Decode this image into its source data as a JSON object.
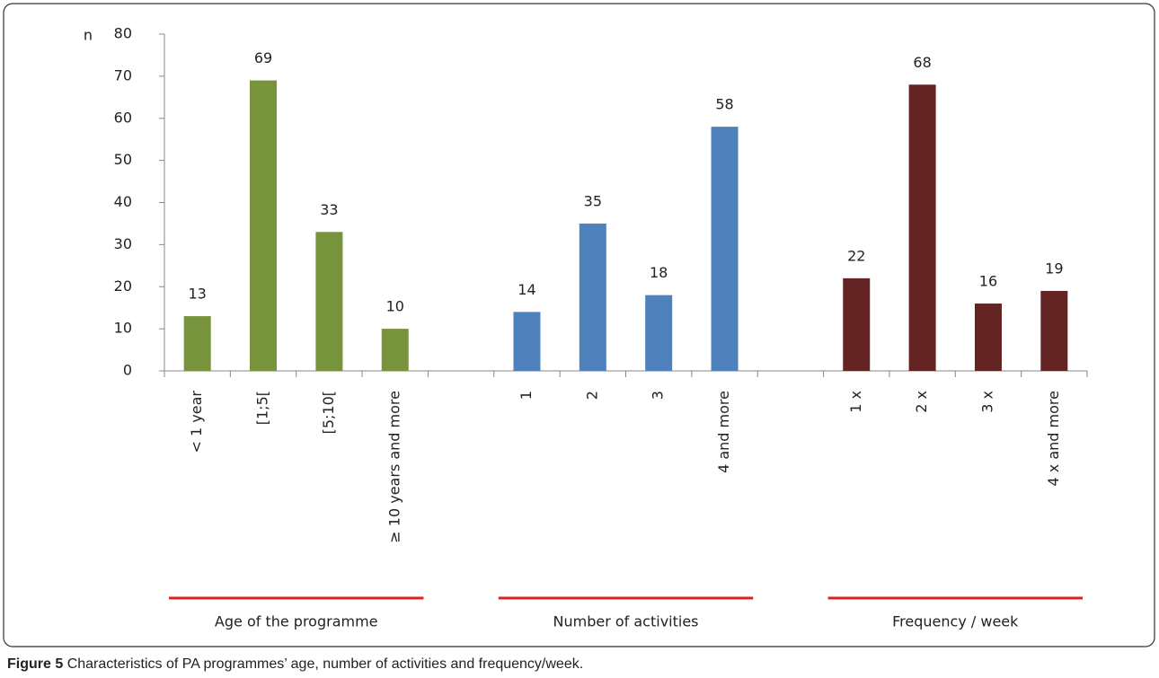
{
  "chart_data": {
    "type": "bar",
    "y_label": "n",
    "categories": [
      "< 1 year",
      "[1;5[",
      "[5;10[",
      "≥ 10 years and more",
      null,
      "1",
      "2",
      "3",
      "4 and more",
      null,
      "1 x",
      "2 x",
      "3 x",
      "4 x and more"
    ],
    "series": [
      {
        "name": "Age of the programme",
        "color": "#77933c",
        "values": [
          13,
          69,
          33,
          10,
          null,
          null,
          null,
          null,
          null,
          null,
          null,
          null,
          null,
          null
        ]
      },
      {
        "name": "Number of activities",
        "color": "#4f81bd",
        "values": [
          null,
          null,
          null,
          null,
          null,
          14,
          35,
          18,
          58,
          null,
          null,
          null,
          null,
          null
        ]
      },
      {
        "name": "Frequency / week",
        "color": "#632423",
        "values": [
          null,
          null,
          null,
          null,
          null,
          null,
          null,
          null,
          null,
          null,
          22,
          68,
          16,
          19
        ]
      }
    ],
    "group_line_color": "#e02020",
    "ylim": [
      0,
      80
    ],
    "yticks": [
      0,
      10,
      20,
      30,
      40,
      50,
      60,
      70,
      80
    ],
    "caption_label": "Figure 5",
    "caption": "Characteristics of PA programmes’ age, number of activities and frequency/week."
  }
}
